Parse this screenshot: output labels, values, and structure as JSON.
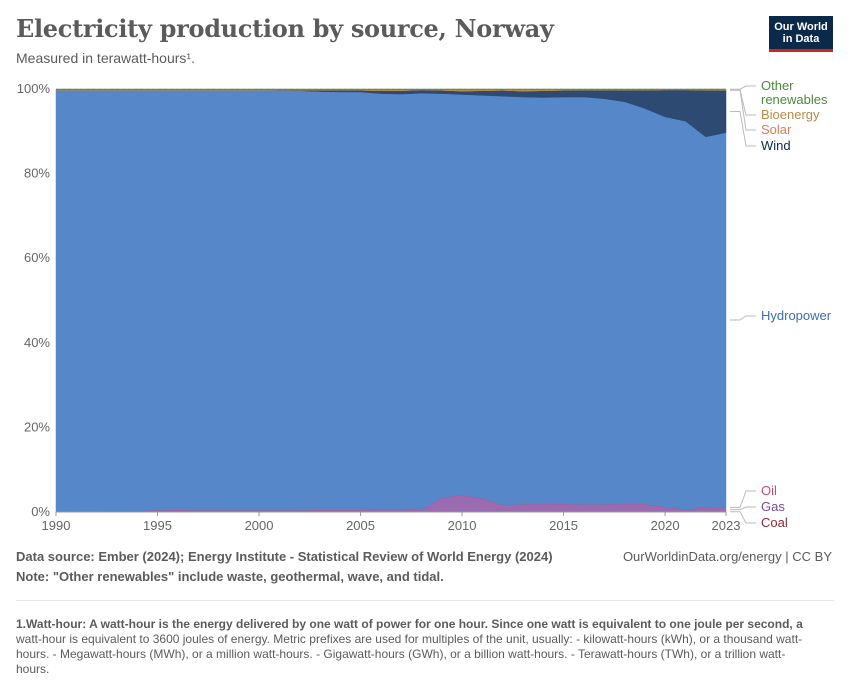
{
  "header": {
    "title": "Electricity production by source, Norway",
    "subtitle": "Measured in terawatt-hours¹.",
    "logo_line1": "Our World",
    "logo_line2": "in Data"
  },
  "footer": {
    "source": "Data source: Ember (2024); Energy Institute - Statistical Review of World Energy (2024)",
    "note": "Note: \"Other renewables\" include waste, geothermal, wave, and tidal.",
    "credit": "OurWorldinData.org/energy | CC BY",
    "footnote_head": "1.Watt-hour: A watt-hour is the energy delivered by one watt of power for one hour. Since one watt is equivalent to one joule per second, a",
    "footnote_body": "watt-hour is equivalent to 3600 joules of energy. Metric prefixes are used for multiples of the unit, usually: - kilowatt-hours (kWh), or a thousand watt-hours. - Megawatt-hours (MWh), or a million watt-hours. - Gigawatt-hours (GWh), or a billion watt-hours. - Terawatt-hours (TWh), or a trillion watt-hours."
  },
  "chart_data": {
    "type": "area",
    "stacked": true,
    "normalized": true,
    "x": [
      1990,
      1991,
      1992,
      1993,
      1994,
      1995,
      1996,
      1997,
      1998,
      1999,
      2000,
      2001,
      2002,
      2003,
      2004,
      2005,
      2006,
      2007,
      2008,
      2009,
      2010,
      2011,
      2012,
      2013,
      2014,
      2015,
      2016,
      2017,
      2018,
      2019,
      2020,
      2021,
      2022,
      2023
    ],
    "xticks": [
      "1990",
      "1995",
      "2000",
      "2005",
      "2010",
      "2015",
      "2020",
      "2023"
    ],
    "xtick_values": [
      1990,
      1995,
      2000,
      2005,
      2010,
      2015,
      2020,
      2023
    ],
    "yticks": [
      "0%",
      "20%",
      "40%",
      "60%",
      "80%",
      "100%"
    ],
    "ytick_values": [
      0,
      20,
      40,
      60,
      80,
      100
    ],
    "ylim": [
      0,
      100
    ],
    "grid": "horizontal dashed",
    "legend": "right, inline labels",
    "series": [
      {
        "name": "Coal",
        "color": "#8c2b3a",
        "values": [
          0.1,
          0.1,
          0.1,
          0.1,
          0.1,
          0.1,
          0.1,
          0.1,
          0.1,
          0.1,
          0.1,
          0.1,
          0.1,
          0.1,
          0.1,
          0.1,
          0.1,
          0.1,
          0.1,
          0.1,
          0.1,
          0.1,
          0.1,
          0.1,
          0.1,
          0.1,
          0.1,
          0.1,
          0.1,
          0.1,
          0.1,
          0.1,
          0.1,
          0.1
        ]
      },
      {
        "name": "Gas",
        "color": "#9a6bb0",
        "values": [
          0.0,
          0.0,
          0.0,
          0.1,
          0.1,
          0.2,
          0.3,
          0.2,
          0.2,
          0.2,
          0.2,
          0.2,
          0.2,
          0.3,
          0.3,
          0.3,
          0.5,
          0.5,
          0.2,
          3.2,
          3.8,
          3.0,
          1.5,
          1.6,
          1.7,
          1.7,
          1.6,
          1.6,
          1.7,
          1.7,
          1.0,
          0.4,
          0.9,
          0.9
        ]
      },
      {
        "name": "Oil",
        "color": "#c44d7d",
        "values": [
          0.1,
          0.1,
          0.1,
          0.1,
          0.1,
          0.1,
          0.1,
          0.1,
          0.1,
          0.1,
          0.1,
          0.1,
          0.1,
          0.1,
          0.1,
          0.1,
          0.1,
          0.1,
          0.1,
          0.1,
          0.1,
          0.1,
          0.1,
          0.1,
          0.1,
          0.1,
          0.1,
          0.1,
          0.1,
          0.1,
          0.1,
          0.1,
          0.1,
          0.1
        ]
      },
      {
        "name": "Hydropower",
        "color": "#5687c9",
        "values": [
          99.5,
          99.5,
          99.5,
          99.4,
          99.4,
          99.3,
          99.2,
          99.3,
          99.3,
          99.3,
          99.3,
          99.3,
          99.2,
          98.9,
          98.8,
          98.8,
          98.2,
          98.1,
          98.6,
          95.5,
          94.6,
          95.3,
          96.6,
          96.1,
          95.9,
          95.8,
          96.4,
          96.0,
          95.1,
          93.6,
          92.2,
          91.8,
          87.6,
          88.6
        ]
      },
      {
        "name": "Wind",
        "color": "#2c4a72",
        "values": [
          0.0,
          0.0,
          0.0,
          0.0,
          0.0,
          0.0,
          0.0,
          0.0,
          0.0,
          0.0,
          0.0,
          0.1,
          0.1,
          0.3,
          0.4,
          0.4,
          0.7,
          0.8,
          0.8,
          0.8,
          0.8,
          1.1,
          1.4,
          1.4,
          1.6,
          1.6,
          1.6,
          2.0,
          2.7,
          4.3,
          6.4,
          7.4,
          11.0,
          10.0
        ]
      },
      {
        "name": "Solar",
        "color": "#e07a5a",
        "values": [
          0,
          0,
          0,
          0,
          0,
          0,
          0,
          0,
          0,
          0,
          0,
          0,
          0,
          0,
          0,
          0,
          0,
          0,
          0,
          0,
          0,
          0,
          0,
          0,
          0,
          0,
          0,
          0,
          0,
          0,
          0,
          0,
          0.01,
          0.02
        ]
      },
      {
        "name": "Bioenergy",
        "color": "#b98a4a",
        "values": [
          0.2,
          0.2,
          0.2,
          0.2,
          0.2,
          0.2,
          0.2,
          0.2,
          0.2,
          0.2,
          0.2,
          0.1,
          0.2,
          0.2,
          0.2,
          0.2,
          0.3,
          0.3,
          0.1,
          0.2,
          0.4,
          0.3,
          0.2,
          0.4,
          0.3,
          0.2,
          0.2,
          0.2,
          0.2,
          0.2,
          0.1,
          0.1,
          0.2,
          0.2
        ]
      },
      {
        "name": "Other renewables",
        "color": "#4c8a3a",
        "values": [
          0.1,
          0.1,
          0.1,
          0.1,
          0.1,
          0.1,
          0.1,
          0.1,
          0.1,
          0.1,
          0.1,
          0.1,
          0.1,
          0.1,
          0.1,
          0.1,
          0.1,
          0.1,
          0.1,
          0.1,
          0.1,
          0.1,
          0.1,
          0.1,
          0.1,
          0.1,
          0.1,
          0.1,
          0.1,
          0.1,
          0.1,
          0.1,
          0.1,
          0.1
        ]
      }
    ],
    "labels": [
      {
        "name": "Other renewables",
        "lines": [
          "Other",
          "renewables"
        ],
        "color": "#4c8a3a"
      },
      {
        "name": "Bioenergy",
        "lines": [
          "Bioenergy"
        ],
        "color": "#b98a4a"
      },
      {
        "name": "Solar",
        "lines": [
          "Solar"
        ],
        "color": "#e07a5a"
      },
      {
        "name": "Wind",
        "lines": [
          "Wind"
        ],
        "color": "#0b2a4a"
      },
      {
        "name": "Hydropower",
        "lines": [
          "Hydropower"
        ],
        "color": "#3a6fb5"
      },
      {
        "name": "Oil",
        "lines": [
          "Oil"
        ],
        "color": "#c44d7d"
      },
      {
        "name": "Gas",
        "lines": [
          "Gas"
        ],
        "color": "#7b4a98"
      },
      {
        "name": "Coal",
        "lines": [
          "Coal"
        ],
        "color": "#8c2b3a"
      }
    ]
  }
}
